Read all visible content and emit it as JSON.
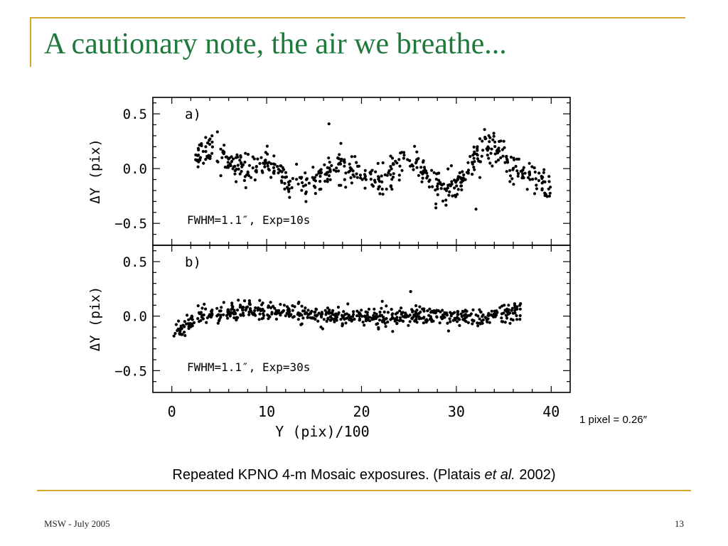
{
  "slide": {
    "title": "A cautionary note, the air we breathe...",
    "scale_note": "1 pixel = 0.26″",
    "caption_pre": "Repeated KPNO 4-m Mosaic exposures. (Platais ",
    "caption_em": "et al.",
    "caption_post": " 2002)",
    "footer_left": "MSW - July 2005",
    "footer_right": "13",
    "colors": {
      "title": "#1e7a3c",
      "accent_line": "#d4a62a",
      "points": "#000000"
    }
  },
  "chart_data": [
    {
      "type": "scatter",
      "panel_label": "a)",
      "annotation": "FWHM=1.1″,  Exp=10s",
      "xlabel": "Y (pix)/100",
      "ylabel": "ΔY (pix)",
      "xlim": [
        -2,
        42
      ],
      "ylim": [
        -0.7,
        0.65
      ],
      "xticks": [
        0,
        10,
        20,
        30,
        40
      ],
      "yticks": [
        0.5,
        0.0,
        -0.5
      ],
      "ytick_labels": [
        "0.5",
        "0.0",
        "−0.5"
      ],
      "grid": false,
      "trend": [
        [
          2.5,
          0.08
        ],
        [
          4,
          0.18
        ],
        [
          6,
          0.05
        ],
        [
          8,
          -0.02
        ],
        [
          10,
          0.06
        ],
        [
          12,
          -0.12
        ],
        [
          14,
          -0.15
        ],
        [
          16,
          -0.05
        ],
        [
          18,
          0.05
        ],
        [
          20,
          -0.05
        ],
        [
          22,
          -0.12
        ],
        [
          24,
          0.05
        ],
        [
          25,
          0.12
        ],
        [
          26,
          0.05
        ],
        [
          27,
          -0.08
        ],
        [
          28,
          -0.15
        ],
        [
          29,
          -0.18
        ],
        [
          30,
          -0.12
        ],
        [
          31,
          -0.05
        ],
        [
          32,
          0.12
        ],
        [
          33,
          0.22
        ],
        [
          34,
          0.18
        ],
        [
          35,
          0.08
        ],
        [
          36,
          0.02
        ],
        [
          37,
          -0.05
        ],
        [
          38,
          -0.1
        ],
        [
          39,
          -0.12
        ],
        [
          40,
          -0.2
        ]
      ],
      "spread": 0.07,
      "n_points": 560,
      "seed": 17
    },
    {
      "type": "scatter",
      "panel_label": "b)",
      "annotation": "FWHM=1.1″,  Exp=30s",
      "xlabel": "Y (pix)/100",
      "ylabel": "ΔY (pix)",
      "xlim": [
        -2,
        42
      ],
      "ylim": [
        -0.7,
        0.65
      ],
      "xticks": [
        0,
        10,
        20,
        30,
        40
      ],
      "xtick_labels": [
        "0",
        "10",
        "20",
        "30",
        "40"
      ],
      "yticks": [
        0.5,
        0.0,
        -0.5
      ],
      "ytick_labels": [
        "0.5",
        "0.0",
        "−0.5"
      ],
      "grid": false,
      "trend": [
        [
          0.2,
          -0.15
        ],
        [
          1,
          -0.12
        ],
        [
          2,
          -0.05
        ],
        [
          3,
          0.0
        ],
        [
          5,
          0.02
        ],
        [
          8,
          0.06
        ],
        [
          10,
          0.05
        ],
        [
          13,
          0.04
        ],
        [
          15,
          0.01
        ],
        [
          18,
          -0.01
        ],
        [
          20,
          -0.02
        ],
        [
          22,
          -0.02
        ],
        [
          25,
          0.0
        ],
        [
          28,
          0.0
        ],
        [
          30,
          0.0
        ],
        [
          33,
          0.0
        ],
        [
          35,
          0.02
        ],
        [
          36.8,
          0.04
        ]
      ],
      "spread": 0.04,
      "n_points": 620,
      "seed": 53
    }
  ]
}
